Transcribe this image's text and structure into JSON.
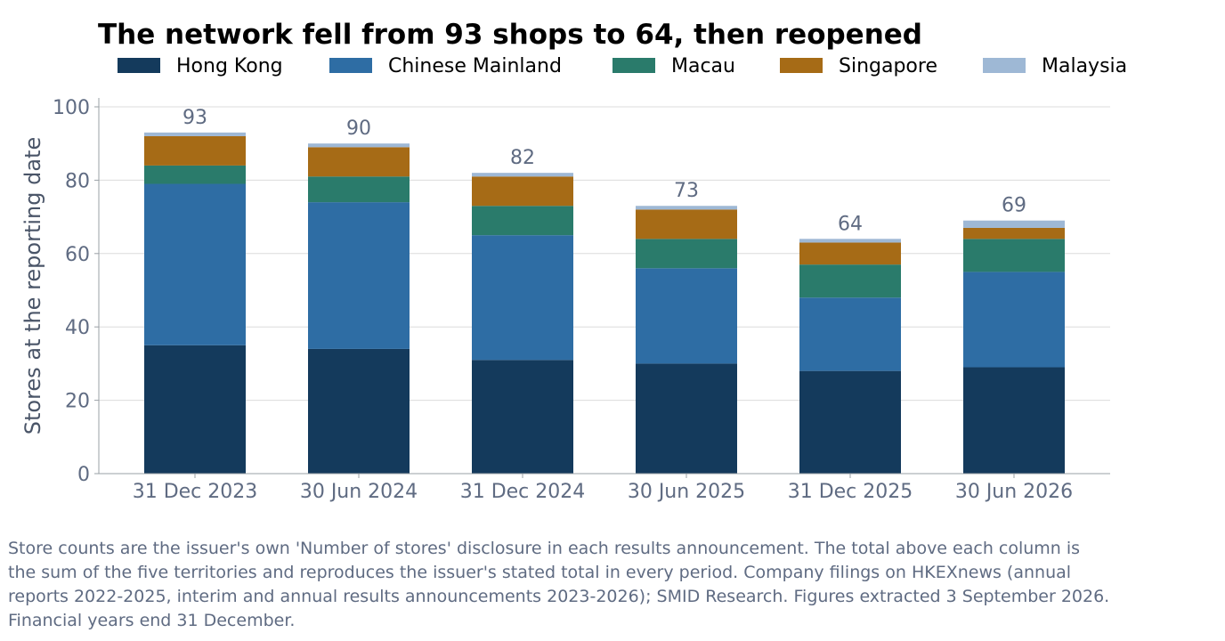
{
  "chart_data": {
    "type": "bar",
    "stacked": true,
    "title": "The network fell from 93 shops to 64, then reopened",
    "xlabel": "",
    "ylabel": "Stores at the reporting date",
    "categories": [
      "31 Dec 2023",
      "30 Jun 2024",
      "31 Dec 2024",
      "30 Jun 2025",
      "31 Dec 2025",
      "30 Jun 2026"
    ],
    "series": [
      {
        "name": "Hong Kong",
        "color": "#143a5c",
        "values": [
          35,
          34,
          31,
          30,
          28,
          29
        ]
      },
      {
        "name": "Chinese Mainland",
        "color": "#2e6da4",
        "values": [
          44,
          40,
          34,
          26,
          20,
          26
        ]
      },
      {
        "name": "Macau",
        "color": "#2a7b6b",
        "values": [
          5,
          7,
          8,
          8,
          9,
          9
        ]
      },
      {
        "name": "Singapore",
        "color": "#a66b16",
        "values": [
          8,
          8,
          8,
          8,
          6,
          3
        ]
      },
      {
        "name": "Malaysia",
        "color": "#9eb8d5",
        "values": [
          1,
          1,
          1,
          1,
          1,
          2
        ]
      }
    ],
    "totals": [
      "93",
      "90",
      "82",
      "73",
      "64",
      "69"
    ],
    "ylim": [
      0,
      100
    ],
    "yticks": [
      "0",
      "20",
      "40",
      "60",
      "80",
      "100"
    ],
    "grid": "horizontal",
    "legend_position": "top"
  },
  "footnote": "Store counts are the issuer's own 'Number of stores' disclosure in each results announcement. The total above each column is the sum of the five territories and reproduces the issuer's stated total in every period. Company filings on HKEXnews (annual reports 2022-2025, interim and annual results announcements 2023-2026); SMID Research. Figures extracted 3 September 2026. Financial years end 31 December."
}
